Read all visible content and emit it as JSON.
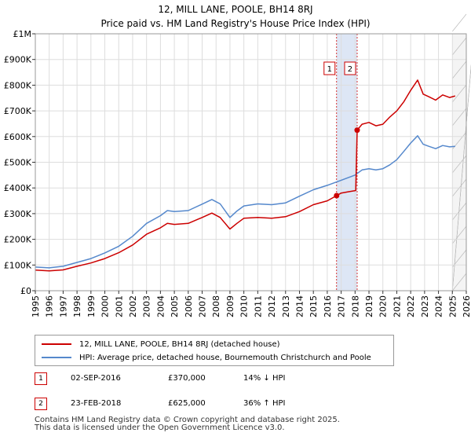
{
  "chart_data": {
    "type": "line",
    "title": "12, MILL LANE, POOLE, BH14 8RJ",
    "subtitle": "Price paid vs. HM Land Registry's House Price Index (HPI)",
    "xlim": [
      1995,
      2026
    ],
    "ylim": [
      0,
      1000000
    ],
    "x_ticks": [
      "1995",
      "1996",
      "1997",
      "1998",
      "1999",
      "2000",
      "2001",
      "2002",
      "2003",
      "2004",
      "2005",
      "2006",
      "2007",
      "2008",
      "2009",
      "2010",
      "2011",
      "2012",
      "2013",
      "2014",
      "2015",
      "2016",
      "2017",
      "2018",
      "2019",
      "2020",
      "2021",
      "2022",
      "2023",
      "2024",
      "2025",
      "2026"
    ],
    "y_ticks": [
      {
        "value": 0,
        "label": "£0"
      },
      {
        "value": 100000,
        "label": "£100K"
      },
      {
        "value": 200000,
        "label": "£200K"
      },
      {
        "value": 300000,
        "label": "£300K"
      },
      {
        "value": 400000,
        "label": "£400K"
      },
      {
        "value": 500000,
        "label": "£500K"
      },
      {
        "value": 600000,
        "label": "£600K"
      },
      {
        "value": 700000,
        "label": "£700K"
      },
      {
        "value": 800000,
        "label": "£800K"
      },
      {
        "value": 900000,
        "label": "£900K"
      },
      {
        "value": 1000000,
        "label": "£1M"
      }
    ],
    "grid": true,
    "series": [
      {
        "name": "12, MILL LANE, POOLE, BH14 8RJ (detached house)",
        "color": "#cc0000",
        "points": [
          [
            1995.0,
            80000
          ],
          [
            1996.0,
            77000
          ],
          [
            1997.0,
            81000
          ],
          [
            1998.0,
            95000
          ],
          [
            1999.0,
            108000
          ],
          [
            2000.0,
            125000
          ],
          [
            2001.0,
            148000
          ],
          [
            2002.0,
            178000
          ],
          [
            2003.0,
            220000
          ],
          [
            2004.0,
            245000
          ],
          [
            2004.5,
            262000
          ],
          [
            2005.0,
            258000
          ],
          [
            2006.0,
            262000
          ],
          [
            2007.0,
            285000
          ],
          [
            2007.7,
            302000
          ],
          [
            2008.3,
            285000
          ],
          [
            2009.0,
            240000
          ],
          [
            2009.5,
            262000
          ],
          [
            2010.0,
            282000
          ],
          [
            2011.0,
            285000
          ],
          [
            2012.0,
            282000
          ],
          [
            2013.0,
            288000
          ],
          [
            2014.0,
            308000
          ],
          [
            2015.0,
            335000
          ],
          [
            2016.0,
            350000
          ],
          [
            2016.67,
            370000
          ],
          [
            2017.0,
            380000
          ],
          [
            2017.5,
            385000
          ],
          [
            2018.05,
            390000
          ],
          [
            2018.15,
            625000
          ],
          [
            2018.5,
            648000
          ],
          [
            2019.0,
            655000
          ],
          [
            2019.5,
            642000
          ],
          [
            2020.0,
            648000
          ],
          [
            2020.5,
            676000
          ],
          [
            2021.0,
            700000
          ],
          [
            2021.5,
            735000
          ],
          [
            2022.0,
            780000
          ],
          [
            2022.5,
            820000
          ],
          [
            2022.9,
            765000
          ],
          [
            2023.3,
            755000
          ],
          [
            2023.8,
            742000
          ],
          [
            2024.3,
            762000
          ],
          [
            2024.8,
            752000
          ],
          [
            2025.2,
            758000
          ]
        ]
      },
      {
        "name": "HPI: Average price, detached house, Bournemouth Christchurch and Poole",
        "color": "#5588cc",
        "points": [
          [
            1995.0,
            92000
          ],
          [
            1996.0,
            89000
          ],
          [
            1997.0,
            95000
          ],
          [
            1998.0,
            110000
          ],
          [
            1999.0,
            125000
          ],
          [
            2000.0,
            147000
          ],
          [
            2001.0,
            173000
          ],
          [
            2002.0,
            212000
          ],
          [
            2003.0,
            262000
          ],
          [
            2004.0,
            292000
          ],
          [
            2004.5,
            312000
          ],
          [
            2005.0,
            308000
          ],
          [
            2006.0,
            312000
          ],
          [
            2007.0,
            337000
          ],
          [
            2007.7,
            355000
          ],
          [
            2008.3,
            338000
          ],
          [
            2009.0,
            285000
          ],
          [
            2009.5,
            310000
          ],
          [
            2010.0,
            330000
          ],
          [
            2011.0,
            338000
          ],
          [
            2012.0,
            335000
          ],
          [
            2013.0,
            342000
          ],
          [
            2014.0,
            368000
          ],
          [
            2015.0,
            393000
          ],
          [
            2016.0,
            410000
          ],
          [
            2017.0,
            430000
          ],
          [
            2018.0,
            450000
          ],
          [
            2018.5,
            470000
          ],
          [
            2019.0,
            475000
          ],
          [
            2019.5,
            470000
          ],
          [
            2020.0,
            475000
          ],
          [
            2020.5,
            490000
          ],
          [
            2021.0,
            510000
          ],
          [
            2021.5,
            542000
          ],
          [
            2022.0,
            575000
          ],
          [
            2022.5,
            603000
          ],
          [
            2022.9,
            570000
          ],
          [
            2023.3,
            562000
          ],
          [
            2023.8,
            553000
          ],
          [
            2024.3,
            565000
          ],
          [
            2024.8,
            560000
          ],
          [
            2025.2,
            562000
          ]
        ]
      }
    ],
    "sale_markers": [
      {
        "label": "1",
        "x": 2016.67,
        "y": 370000
      },
      {
        "label": "2",
        "x": 2018.15,
        "y": 625000
      }
    ],
    "highlight_band": {
      "from": 2016.67,
      "to": 2018.15
    },
    "future_from": 2025.0
  },
  "legend": {
    "property_label": "12, MILL LANE, POOLE, BH14 8RJ (detached house)",
    "hpi_label": "HPI: Average price, detached house, Bournemouth Christchurch and Poole"
  },
  "sales": [
    {
      "num": "1",
      "date": "02-SEP-2016",
      "price": "£370,000",
      "hpi": "14% ↓ HPI"
    },
    {
      "num": "2",
      "date": "23-FEB-2018",
      "price": "£625,000",
      "hpi": "36% ↑ HPI"
    }
  ],
  "footer": {
    "line1": "Contains HM Land Registry data © Crown copyright and database right 2025.",
    "line2": "This data is licensed under the Open Government Licence v3.0."
  },
  "colors": {
    "property": "#cc0000",
    "hpi": "#5588cc",
    "grid": "#dddddd",
    "band": "#dde6f5"
  }
}
